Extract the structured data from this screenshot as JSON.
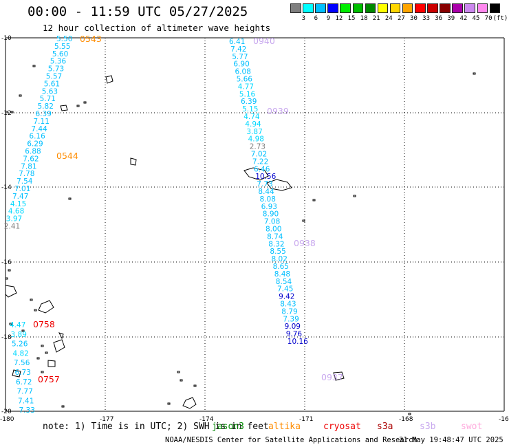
{
  "header": {
    "title": "00:00 - 11:59 UTC 05/27/2025",
    "subtitle": "12 hour collection of altimeter wave heights"
  },
  "legend": {
    "labels": [
      "3",
      "6",
      "9",
      "12",
      "15",
      "18",
      "21",
      "24",
      "27",
      "30",
      "33",
      "36",
      "39",
      "42",
      "45",
      "70"
    ],
    "unit": "(ft)",
    "colors": [
      "#7f7f7f",
      "#00ffff",
      "#00bfff",
      "#0000ff",
      "#00ee00",
      "#00c000",
      "#008800",
      "#ffff00",
      "#ffd700",
      "#ffa500",
      "#ff0000",
      "#cc0000",
      "#880000",
      "#aa00aa",
      "#cc88ee",
      "#ff88ee",
      "#000000"
    ]
  },
  "axes": {
    "lon_labels": [
      "-180",
      "-177",
      "-174",
      "-171",
      "-168",
      "-16"
    ],
    "lat_labels": [
      "-10",
      "-12",
      "-14",
      "-16",
      "-18",
      "-20"
    ]
  },
  "tracks": [
    {
      "pass_id": "0543",
      "pass_color": "#ff8c00",
      "values": [
        "5.50",
        "5.55",
        "5.60",
        "5.36",
        "5.73",
        "5.57",
        "5.61",
        "5.63",
        "5.71",
        "5.82",
        "6.39",
        "7.11",
        "7.44",
        "6.16",
        "6.29",
        "6.88",
        "7.62",
        "7.81",
        "7.78",
        "7.54",
        "7.01",
        "7.47",
        "4.15",
        "4.68",
        "3.97",
        "2.41"
      ],
      "colors": [
        "#00bfff",
        "#00bfff",
        "#00bfff",
        "#00bfff",
        "#00bfff",
        "#00bfff",
        "#00bfff",
        "#00bfff",
        "#00bfff",
        "#00bfff",
        "#00bfff",
        "#00bfff",
        "#00bfff",
        "#00bfff",
        "#00bfff",
        "#00bfff",
        "#00bfff",
        "#00bfff",
        "#00bfff",
        "#00bfff",
        "#00bfff",
        "#00bfff",
        "#00d8ff",
        "#00d8ff",
        "#00d8ff",
        "#7f7f7f"
      ]
    },
    {
      "pass_id": "0544",
      "pass_color": "#ff8c00",
      "values": [],
      "colors": []
    },
    {
      "pass_id": "0940",
      "pass_color": "#c8a8ee",
      "values": [
        "6.41",
        "7.42",
        "5.77",
        "6.90",
        "6.08",
        "5.66",
        "4.77",
        "5.16",
        "6.39",
        "5.15",
        "4.74",
        "4.94",
        "3.87",
        "4.98",
        "2.73",
        "7.02",
        "7.22",
        "6.46",
        "10.56",
        "7.73",
        "8.44",
        "8.08",
        "6.93",
        "8.90",
        "7.08",
        "8.00",
        "8.74",
        "8.32",
        "8.55",
        "8.02",
        "8.65",
        "8.48",
        "8.54",
        "7.45",
        "9.42",
        "8.43",
        "8.79",
        "7.39",
        "9.09",
        "9.76",
        "10.16"
      ],
      "colors": [
        "#00bfff",
        "#00bfff",
        "#00bfff",
        "#00bfff",
        "#00bfff",
        "#00bfff",
        "#00d8ff",
        "#00d8ff",
        "#00bfff",
        "#00d8ff",
        "#00d8ff",
        "#00d8ff",
        "#00d8ff",
        "#00d8ff",
        "#7f7f7f",
        "#00bfff",
        "#00bfff",
        "#00bfff",
        "#0000cc",
        "#00bfff",
        "#00bfff",
        "#00bfff",
        "#00bfff",
        "#00bfff",
        "#00bfff",
        "#00bfff",
        "#00bfff",
        "#00bfff",
        "#00bfff",
        "#00bfff",
        "#00bfff",
        "#00bfff",
        "#00bfff",
        "#00bfff",
        "#0000cc",
        "#00bfff",
        "#00bfff",
        "#00bfff",
        "#0000cc",
        "#0000cc",
        "#0000cc"
      ]
    },
    {
      "pass_id": "0939",
      "pass_color": "#c8a8ee",
      "values": [],
      "colors": []
    },
    {
      "pass_id": "0938",
      "pass_color": "#c8a8ee",
      "values": [],
      "colors": []
    },
    {
      "pass_id": "0937",
      "pass_color": "#c8a8ee",
      "values": [],
      "colors": []
    },
    {
      "pass_id": "0758",
      "pass_color": "#ee0000",
      "values": [
        "4.47",
        "3.89",
        "5.26",
        "4.82",
        "7.56",
        "6.73",
        "6.72",
        "7.77",
        "7.41",
        "7.33"
      ],
      "colors": [
        "#00d8ff",
        "#00d8ff",
        "#00bfff",
        "#00d8ff",
        "#00bfff",
        "#00bfff",
        "#00bfff",
        "#00bfff",
        "#00bfff",
        "#00bfff"
      ]
    },
    {
      "pass_id": "0757",
      "pass_color": "#ee0000",
      "values": [],
      "colors": []
    }
  ],
  "footer": {
    "note": "note: 1) Time is in UTC; 2) SWH is in feet",
    "satellites": [
      {
        "name": "jason3",
        "color": "#008800"
      },
      {
        "name": "altika",
        "color": "#ff8c00"
      },
      {
        "name": "cryosat",
        "color": "#ee0000"
      },
      {
        "name": "s3a",
        "color": "#aa0000"
      },
      {
        "name": "s3b",
        "color": "#c8a8ee"
      },
      {
        "name": "swot",
        "color": "#ffaadd"
      }
    ],
    "credit": "NOAA/NESDIS Center for Satellite Applications and Research",
    "timestamp": "31 May 19:48:47 UTC 2025"
  }
}
